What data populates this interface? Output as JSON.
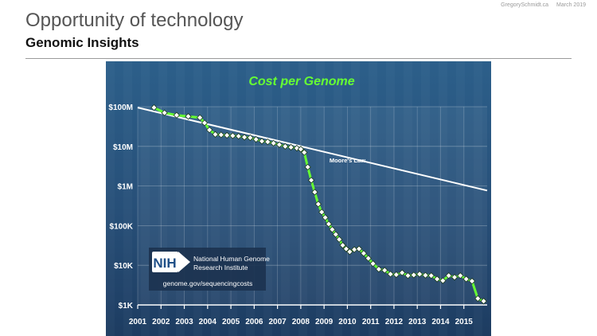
{
  "header": {
    "author": "GregorySchmidt.ca",
    "date": "March 2019",
    "title": "Opportunity of technology",
    "subtitle": "Genomic Insights"
  },
  "colors": {
    "accent_green": "#66ff33",
    "moore_line": "#ffffff",
    "background_top": "#2c5f8a",
    "background_bottom": "#1d3c61"
  },
  "logo": {
    "mark": "NIH",
    "org_line1": "National Human Genome",
    "org_line2": "Research Institute",
    "url": "genome.gov/sequencingcosts"
  },
  "chart_data": {
    "type": "line",
    "title": "Cost per Genome",
    "xlabel": "",
    "ylabel": "",
    "yscale": "log",
    "grid": true,
    "ylim": [
      1000,
      100000000
    ],
    "xlim": [
      2001.0,
      2016.0
    ],
    "y_ticks": [
      {
        "value": 100000000,
        "label": "$100M"
      },
      {
        "value": 10000000,
        "label": "$10M"
      },
      {
        "value": 1000000,
        "label": "$1M"
      },
      {
        "value": 100000,
        "label": "$100K"
      },
      {
        "value": 10000,
        "label": "$10K"
      },
      {
        "value": 1000,
        "label": "$1K"
      }
    ],
    "x_ticks": [
      "2001",
      "2002",
      "2003",
      "2004",
      "2005",
      "2006",
      "2007",
      "2008",
      "2009",
      "2010",
      "2011",
      "2012",
      "2013",
      "2014",
      "2015"
    ],
    "annotations": [
      {
        "text": "Moore's Law",
        "x": 2010.0,
        "y": 4500000
      }
    ],
    "series": [
      {
        "name": "",
        "color": "#66ff33",
        "marker": "diamond",
        "x": [
          2001.7,
          2002.15,
          2002.67,
          2003.17,
          2003.67,
          2003.87,
          2004.08,
          2004.33,
          2004.58,
          2004.83,
          2005.08,
          2005.33,
          2005.58,
          2005.83,
          2006.08,
          2006.33,
          2006.58,
          2006.83,
          2007.08,
          2007.33,
          2007.58,
          2007.83,
          2008.0,
          2008.15,
          2008.3,
          2008.45,
          2008.6,
          2008.75,
          2008.9,
          2009.05,
          2009.2,
          2009.35,
          2009.5,
          2009.65,
          2009.8,
          2009.95,
          2010.1,
          2010.3,
          2010.5,
          2010.7,
          2010.9,
          2011.1,
          2011.35,
          2011.6,
          2011.85,
          2012.1,
          2012.35,
          2012.6,
          2012.85,
          2013.1,
          2013.35,
          2013.6,
          2013.85,
          2014.1,
          2014.35,
          2014.6,
          2014.85,
          2015.1,
          2015.35,
          2015.6,
          2015.85
        ],
        "y": [
          95000000,
          70000000,
          61000000,
          57000000,
          53000000,
          39000000,
          26000000,
          20000000,
          19500000,
          19000000,
          18500000,
          18000000,
          17000000,
          16500000,
          15000000,
          13500000,
          13000000,
          12000000,
          11000000,
          10000000,
          9500000,
          9000000,
          8500000,
          7000000,
          3000000,
          1400000,
          700000,
          350000,
          220000,
          160000,
          110000,
          80000,
          60000,
          45000,
          32000,
          26000,
          22000,
          25000,
          26000,
          20000,
          15000,
          11000,
          8000,
          7500,
          6000,
          5800,
          6500,
          5500,
          5700,
          6000,
          5600,
          5500,
          4500,
          4100,
          5500,
          5000,
          5500,
          4500,
          4000,
          1450,
          1250
        ]
      },
      {
        "name": "Moore's Law",
        "color": "#ffffff",
        "x": [
          2001.0,
          2016.0
        ],
        "y": [
          95000000,
          770000
        ]
      }
    ]
  }
}
